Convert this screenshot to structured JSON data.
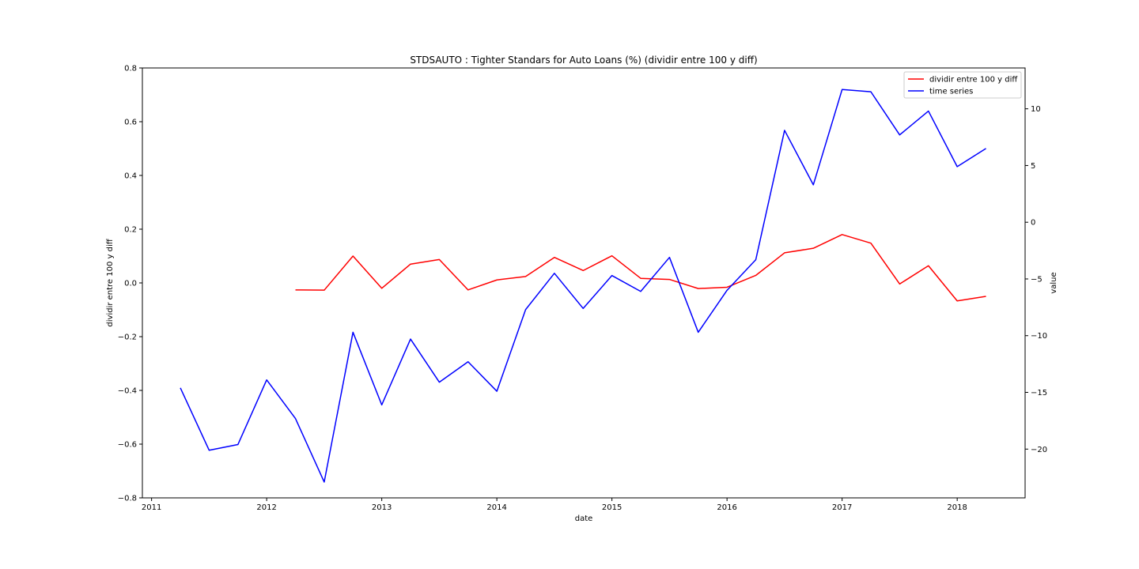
{
  "chart_data": {
    "type": "line",
    "title": "STDSAUTO :  Tighter Standars for Auto Loans (%) (dividir entre 100 y diff)",
    "xlabel": "date",
    "ylabel_left": "dividir entre 100 y diff",
    "ylabel_right": "value",
    "xlim": [
      2010.92,
      2018.59
    ],
    "ylim_left": [
      -0.8,
      0.8
    ],
    "ylim_right": [
      -24.3,
      13.6
    ],
    "x_ticks": [
      2011,
      2012,
      2013,
      2014,
      2015,
      2016,
      2017,
      2018
    ],
    "x_tick_labels": [
      "2011",
      "2012",
      "2013",
      "2014",
      "2015",
      "2016",
      "2017",
      "2018"
    ],
    "y_left_ticks": [
      -0.8,
      -0.6,
      -0.4,
      -0.2,
      0.0,
      0.2,
      0.4,
      0.6,
      0.8
    ],
    "y_left_tick_labels": [
      "−0.8",
      "−0.6",
      "−0.4",
      "−0.2",
      "0.0",
      "0.2",
      "0.4",
      "0.6",
      "0.8"
    ],
    "y_right_ticks": [
      -20,
      -15,
      -10,
      -5,
      0,
      5,
      10
    ],
    "y_right_tick_labels": [
      "−20",
      "−15",
      "−10",
      "−5",
      "0",
      "5",
      "10"
    ],
    "legend_position": "top-right",
    "grid": false,
    "colors": {
      "left_series": "#ff0000",
      "right_series": "#0000ff",
      "left_axis_label": "#ff0000",
      "right_axis_label": "#0000ff"
    },
    "series": [
      {
        "name": "dividir entre 100 y diff",
        "axis": "left",
        "color": "#ff0000",
        "x": [
          "2012-04-01",
          "2012-07-01",
          "2012-10-01",
          "2013-01-01",
          "2013-04-01",
          "2013-07-01",
          "2013-10-01",
          "2014-01-01",
          "2014-04-01",
          "2014-07-01",
          "2014-10-01",
          "2015-01-01",
          "2015-04-01",
          "2015-07-01",
          "2015-10-01",
          "2016-01-01",
          "2016-04-01",
          "2016-07-01",
          "2016-10-01",
          "2017-01-01",
          "2017-04-01",
          "2017-07-01",
          "2017-10-01",
          "2018-01-01",
          "2018-04-01"
        ],
        "values": [
          -0.026,
          -0.027,
          0.1,
          -0.02,
          0.07,
          0.087,
          -0.026,
          0.011,
          0.024,
          0.095,
          0.046,
          0.101,
          0.017,
          0.013,
          -0.021,
          -0.016,
          0.028,
          0.112,
          0.129,
          0.18,
          0.148,
          -0.004,
          0.064,
          -0.067,
          -0.05
        ]
      },
      {
        "name": "time series",
        "axis": "right",
        "color": "#0000ff",
        "x": [
          "2011-04-01",
          "2011-07-01",
          "2011-10-01",
          "2012-01-01",
          "2012-04-01",
          "2012-07-01",
          "2012-10-01",
          "2013-01-01",
          "2013-04-01",
          "2013-07-01",
          "2013-10-01",
          "2014-01-01",
          "2014-04-01",
          "2014-07-01",
          "2014-10-01",
          "2015-01-01",
          "2015-04-01",
          "2015-07-01",
          "2015-10-01",
          "2016-01-01",
          "2016-04-01",
          "2016-07-01",
          "2016-10-01",
          "2017-01-01",
          "2017-04-01",
          "2017-07-01",
          "2017-10-01",
          "2018-01-01",
          "2018-04-01"
        ],
        "values": [
          -14.6,
          -20.1,
          -19.6,
          -13.9,
          -17.3,
          -22.9,
          -9.7,
          -16.1,
          -10.3,
          -14.1,
          -12.3,
          -14.9,
          -7.7,
          -4.5,
          -7.6,
          -4.7,
          -6.1,
          -3.1,
          -9.7,
          -6.0,
          -3.3,
          8.1,
          3.3,
          11.7,
          11.5,
          7.7,
          9.8,
          4.9,
          6.5
        ]
      }
    ]
  }
}
